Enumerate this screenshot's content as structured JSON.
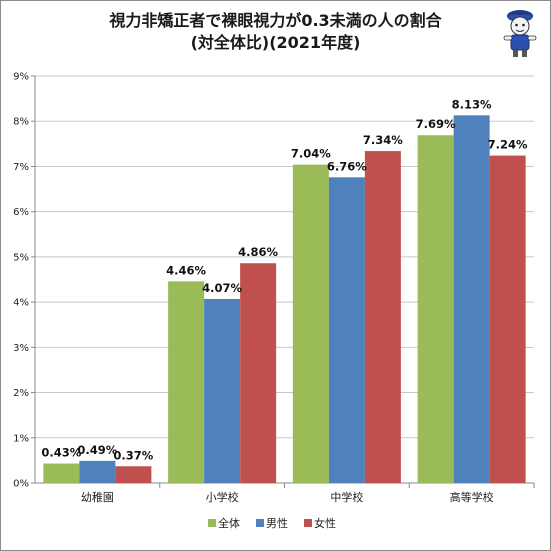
{
  "chart_data": {
    "type": "bar",
    "title": "視力非矯正者で裸眼視力が0.3未満の人の割合",
    "subtitle": "(対全体比)(2021年度)",
    "categories": [
      "幼稚園",
      "小学校",
      "中学校",
      "高等学校"
    ],
    "series": [
      {
        "name": "全体",
        "color": "#9bbb59",
        "values": [
          0.43,
          4.46,
          7.04,
          7.69
        ],
        "labels": [
          "0.43%",
          "4.46%",
          "7.04%",
          "7.69%"
        ]
      },
      {
        "name": "男性",
        "color": "#4f81bd",
        "values": [
          0.49,
          4.07,
          6.76,
          8.13
        ],
        "labels": [
          "0.49%",
          "4.07%",
          "6.76%",
          "8.13%"
        ]
      },
      {
        "name": "女性",
        "color": "#c0504d",
        "values": [
          0.37,
          4.86,
          7.34,
          7.24
        ],
        "labels": [
          "0.37%",
          "4.86%",
          "7.34%",
          "7.24%"
        ]
      }
    ],
    "yticks": [
      "0%",
      "1%",
      "2%",
      "3%",
      "4%",
      "5%",
      "6%",
      "7%",
      "8%",
      "9%"
    ],
    "ylim": [
      0,
      9
    ],
    "xlabel": "",
    "ylabel": "",
    "grid": true,
    "legend": "bottom"
  }
}
